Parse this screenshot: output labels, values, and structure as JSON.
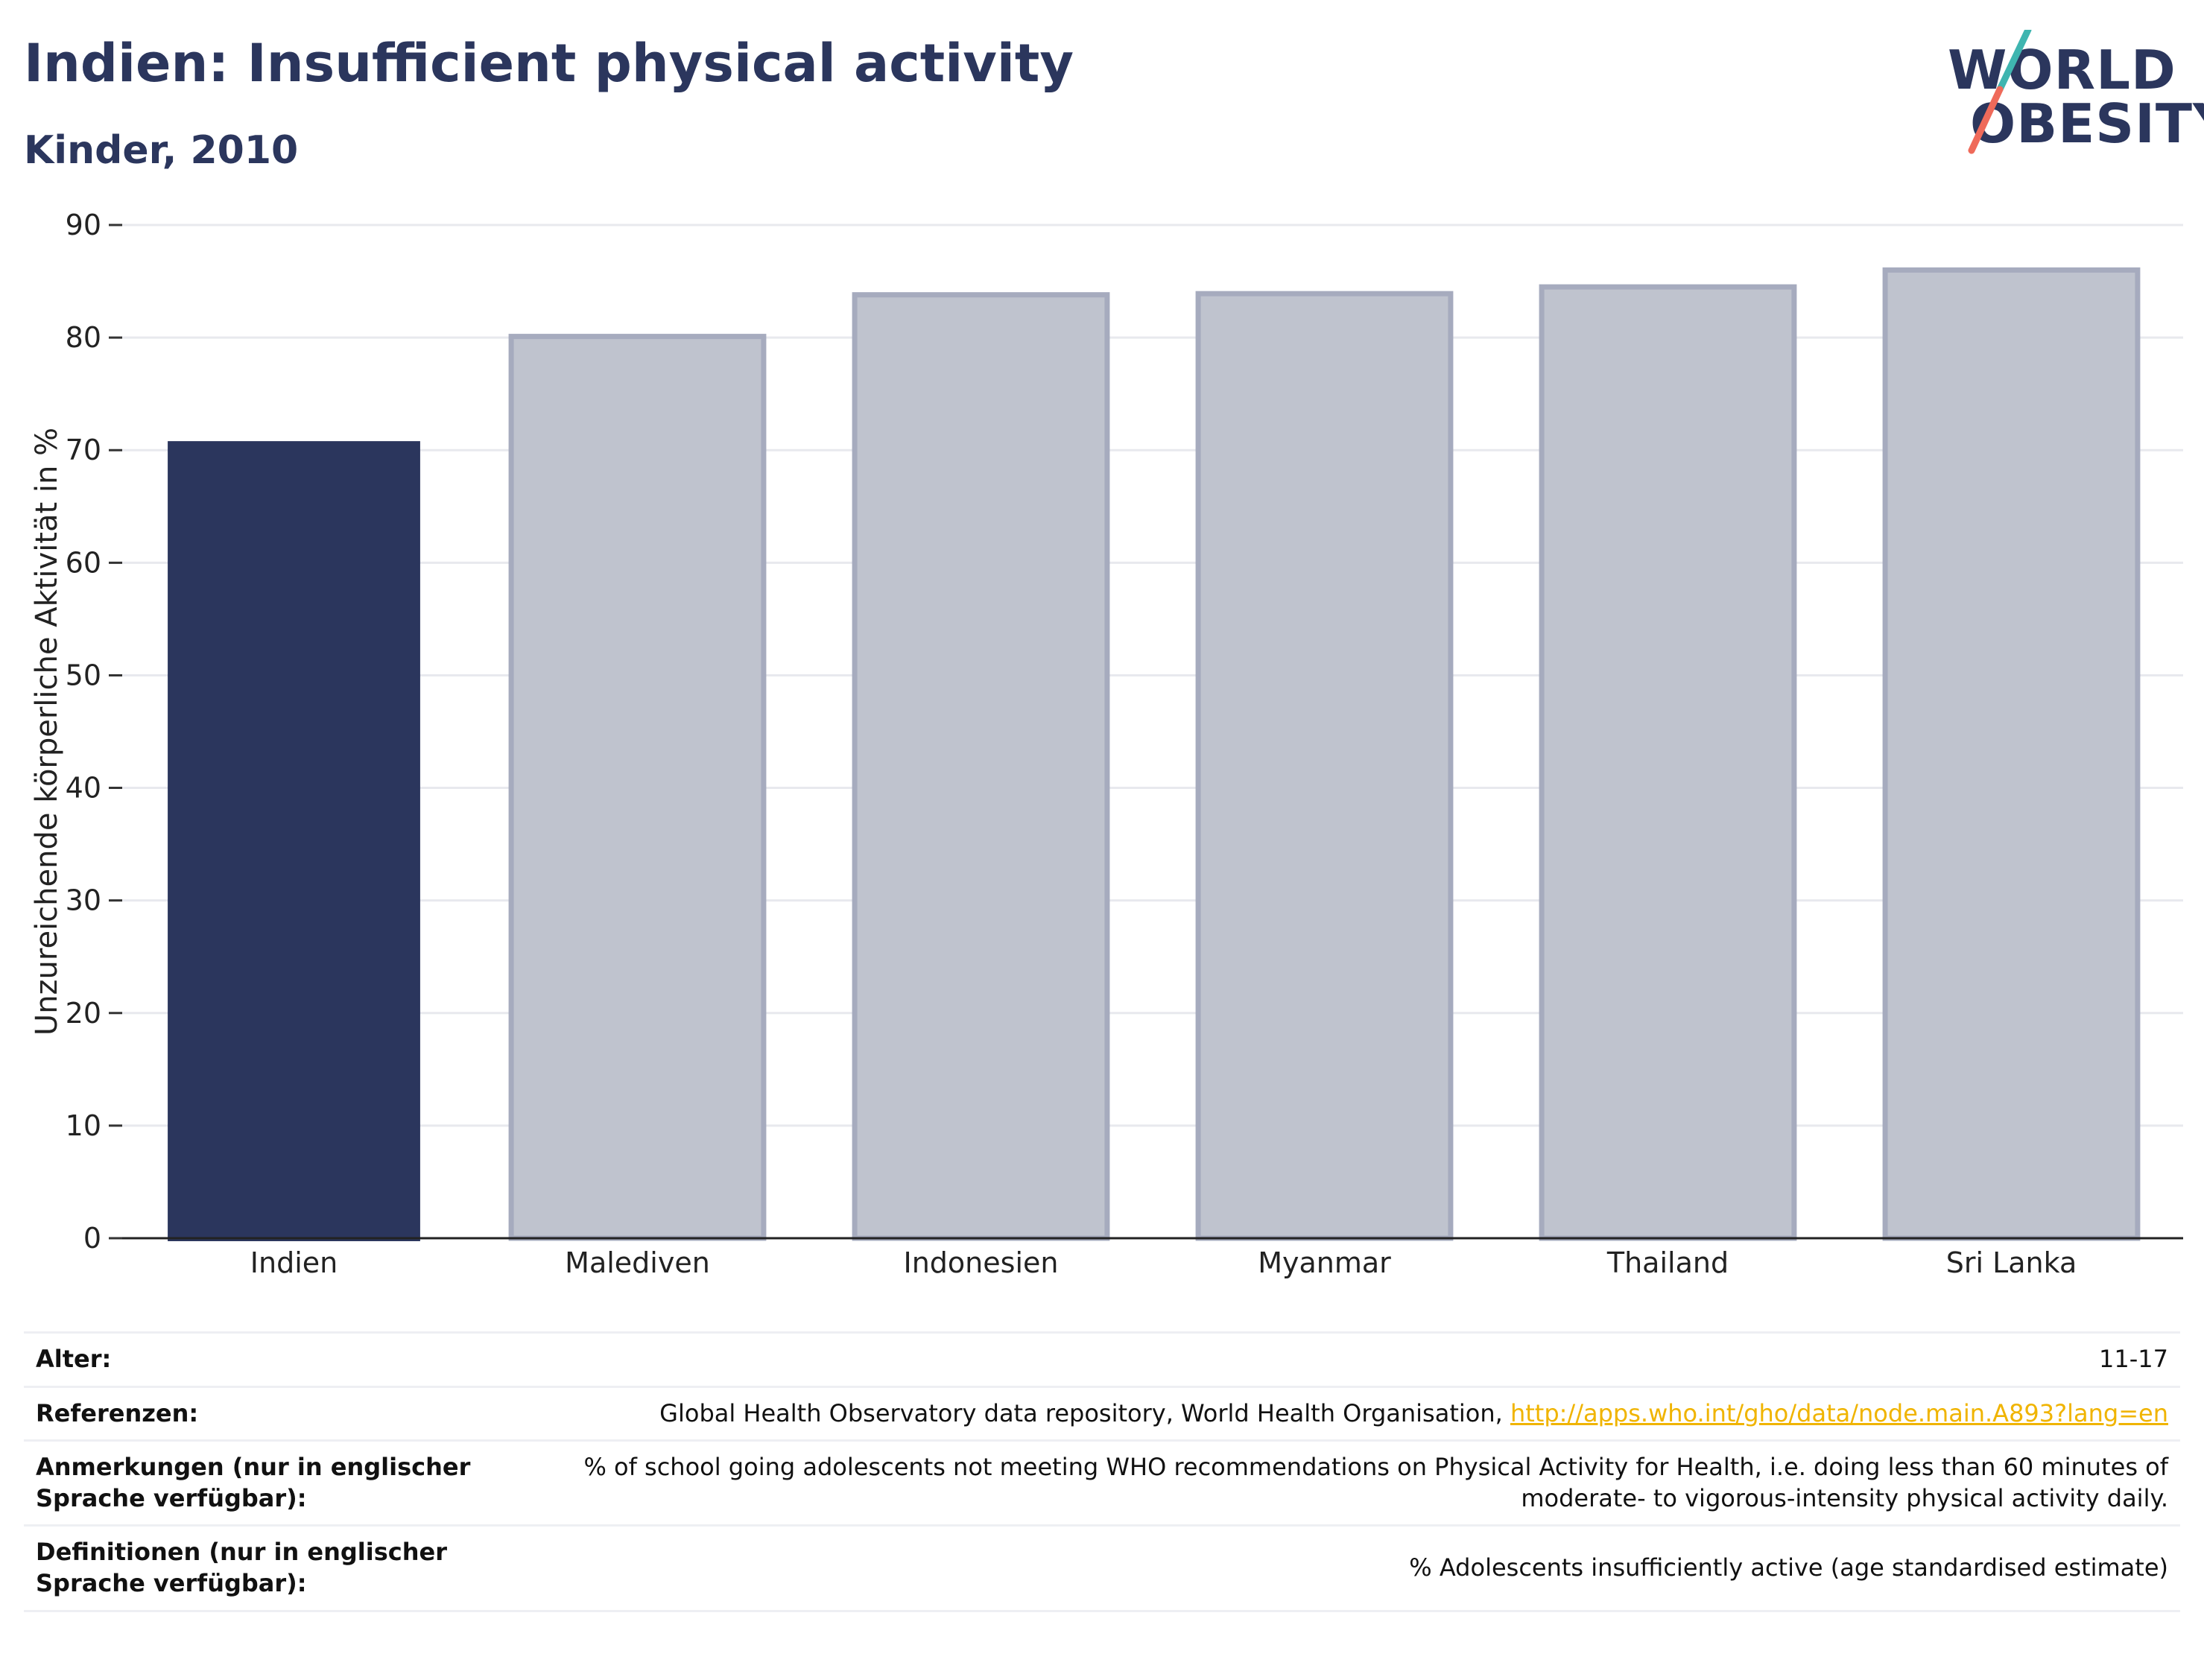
{
  "header": {
    "title": "Indien: Insufficient physical activity",
    "subtitle": "Kinder, 2010"
  },
  "logo": {
    "line1": "WORLD",
    "line2": "OBESITY"
  },
  "colors": {
    "highlight": "#2b365d",
    "other": "#bfc3ce",
    "other_border": "#a6abbe",
    "grid": "#e8e9ee",
    "link": "#f0b400",
    "logo_teal": "#3fb5b0",
    "logo_coral": "#ef6a5a"
  },
  "chart_data": {
    "type": "bar",
    "ylabel": "Unzureichende körperliche Aktivität in %",
    "xlabel": "",
    "ylim": [
      0,
      90
    ],
    "yticks": [
      0,
      10,
      20,
      30,
      40,
      50,
      60,
      70,
      80,
      90
    ],
    "grid": true,
    "categories": [
      "Indien",
      "Malediven",
      "Indonesien",
      "Myanmar",
      "Thailand",
      "Sri Lanka"
    ],
    "values": [
      70.8,
      80.1,
      83.8,
      83.9,
      84.5,
      86.0
    ],
    "highlighted": "Indien"
  },
  "meta": {
    "rows": [
      {
        "key": "Alter:",
        "value": "11-17"
      },
      {
        "key": "Referenzen:",
        "value": "Global Health Observatory data repository, World Health Organisation, ",
        "link": "http://apps.who.int/gho/data/node.main.A893?lang=en"
      },
      {
        "key": "Anmerkungen (nur in englischer Sprache verfügbar):",
        "value": "% of school going adolescents not meeting WHO recommendations on Physical Activity for Health, i.e. doing less than 60 minutes of moderate- to vigorous-intensity physical activity daily."
      },
      {
        "key": "Definitionen (nur in englischer Sprache verfügbar):",
        "value": "% Adolescents insufficiently active (age standardised estimate)"
      }
    ]
  }
}
